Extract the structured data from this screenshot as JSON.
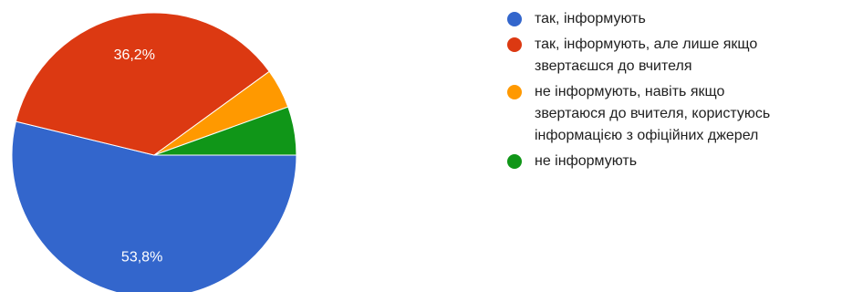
{
  "chart_data": {
    "type": "pie",
    "title": "",
    "slices": [
      {
        "label": "так, інформують",
        "value": 53.8,
        "value_label": "53,8%",
        "color": "#3366cc"
      },
      {
        "label": "так, інформують, але лише якщо звертаєшся до вчителя",
        "value": 36.2,
        "value_label": "36,2%",
        "color": "#dc3912"
      },
      {
        "label": "не інформують, навіть якщо звертаюся до вчителя, користуюсь інформацією з офіційних джерел",
        "value": 4.5,
        "value_label": "",
        "color": "#ff9900"
      },
      {
        "label": "не інформують",
        "value": 5.5,
        "value_label": "",
        "color": "#109618"
      }
    ],
    "legend_position": "right"
  },
  "legend": {
    "items": [
      {
        "text": "так, інформують"
      },
      {
        "text": "так, інформують, але лише якщо\nзвертаєшся до вчителя"
      },
      {
        "text": "не інформують, навіть якщо\nзвертаюся до вчителя, користуюсь\nінформацією з офіційних джерел"
      },
      {
        "text": "не інформують"
      }
    ]
  }
}
